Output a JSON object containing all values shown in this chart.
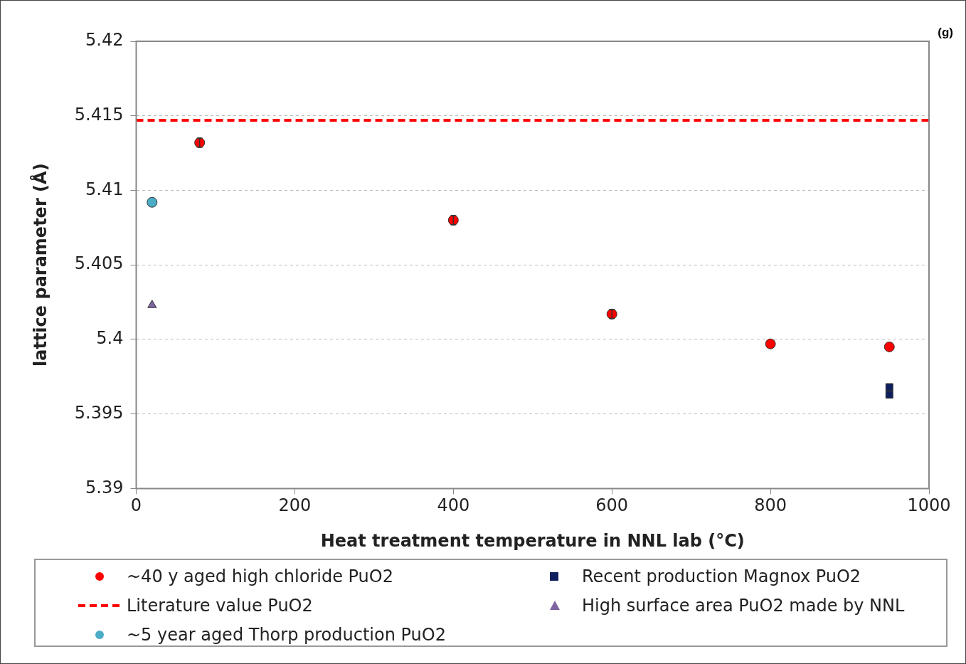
{
  "chart_data": {
    "type": "scatter",
    "title": "(g)",
    "xlabel": "Heat treatment temperature in NNL lab (°C)",
    "ylabel": "lattice parameter (Å)",
    "xlim": [
      0,
      1000
    ],
    "xticks": [
      0,
      200,
      400,
      600,
      800,
      1000
    ],
    "ylim": [
      5.39,
      5.42
    ],
    "yticks": [
      5.39,
      5.395,
      5.4,
      5.405,
      5.41,
      5.415,
      5.42
    ],
    "grid": "y",
    "legend": "bottom",
    "series": [
      {
        "name": "~40 y aged high chloride PuO2",
        "color": "#ff0000",
        "marker": "circle",
        "x": [
          80,
          400,
          600,
          800,
          950
        ],
        "values": [
          5.4132,
          5.408,
          5.4017,
          5.3997,
          5.3995
        ],
        "errors": [
          0.0003,
          0.0003,
          0.0003,
          null,
          null
        ]
      },
      {
        "name": "Recent production Magnox PuO2",
        "color": "#0d1f5c",
        "marker": "square",
        "x": [
          950,
          950
        ],
        "values": [
          5.3968,
          5.3963
        ]
      },
      {
        "name": "High surface area PuO2 made by NNL",
        "color": "#8064a2",
        "marker": "triangle",
        "x": [
          20
        ],
        "values": [
          5.4023
        ]
      },
      {
        "name": "~5 year aged Thorp production PuO2",
        "color": "#4bacc6",
        "marker": "circle",
        "x": [
          20
        ],
        "values": [
          5.4092
        ]
      }
    ],
    "ref_lines": [
      {
        "axis": "y",
        "value": 5.4147,
        "label": "Literature value PuO2",
        "color": "#ff0000",
        "line_style": "dashed"
      }
    ]
  }
}
